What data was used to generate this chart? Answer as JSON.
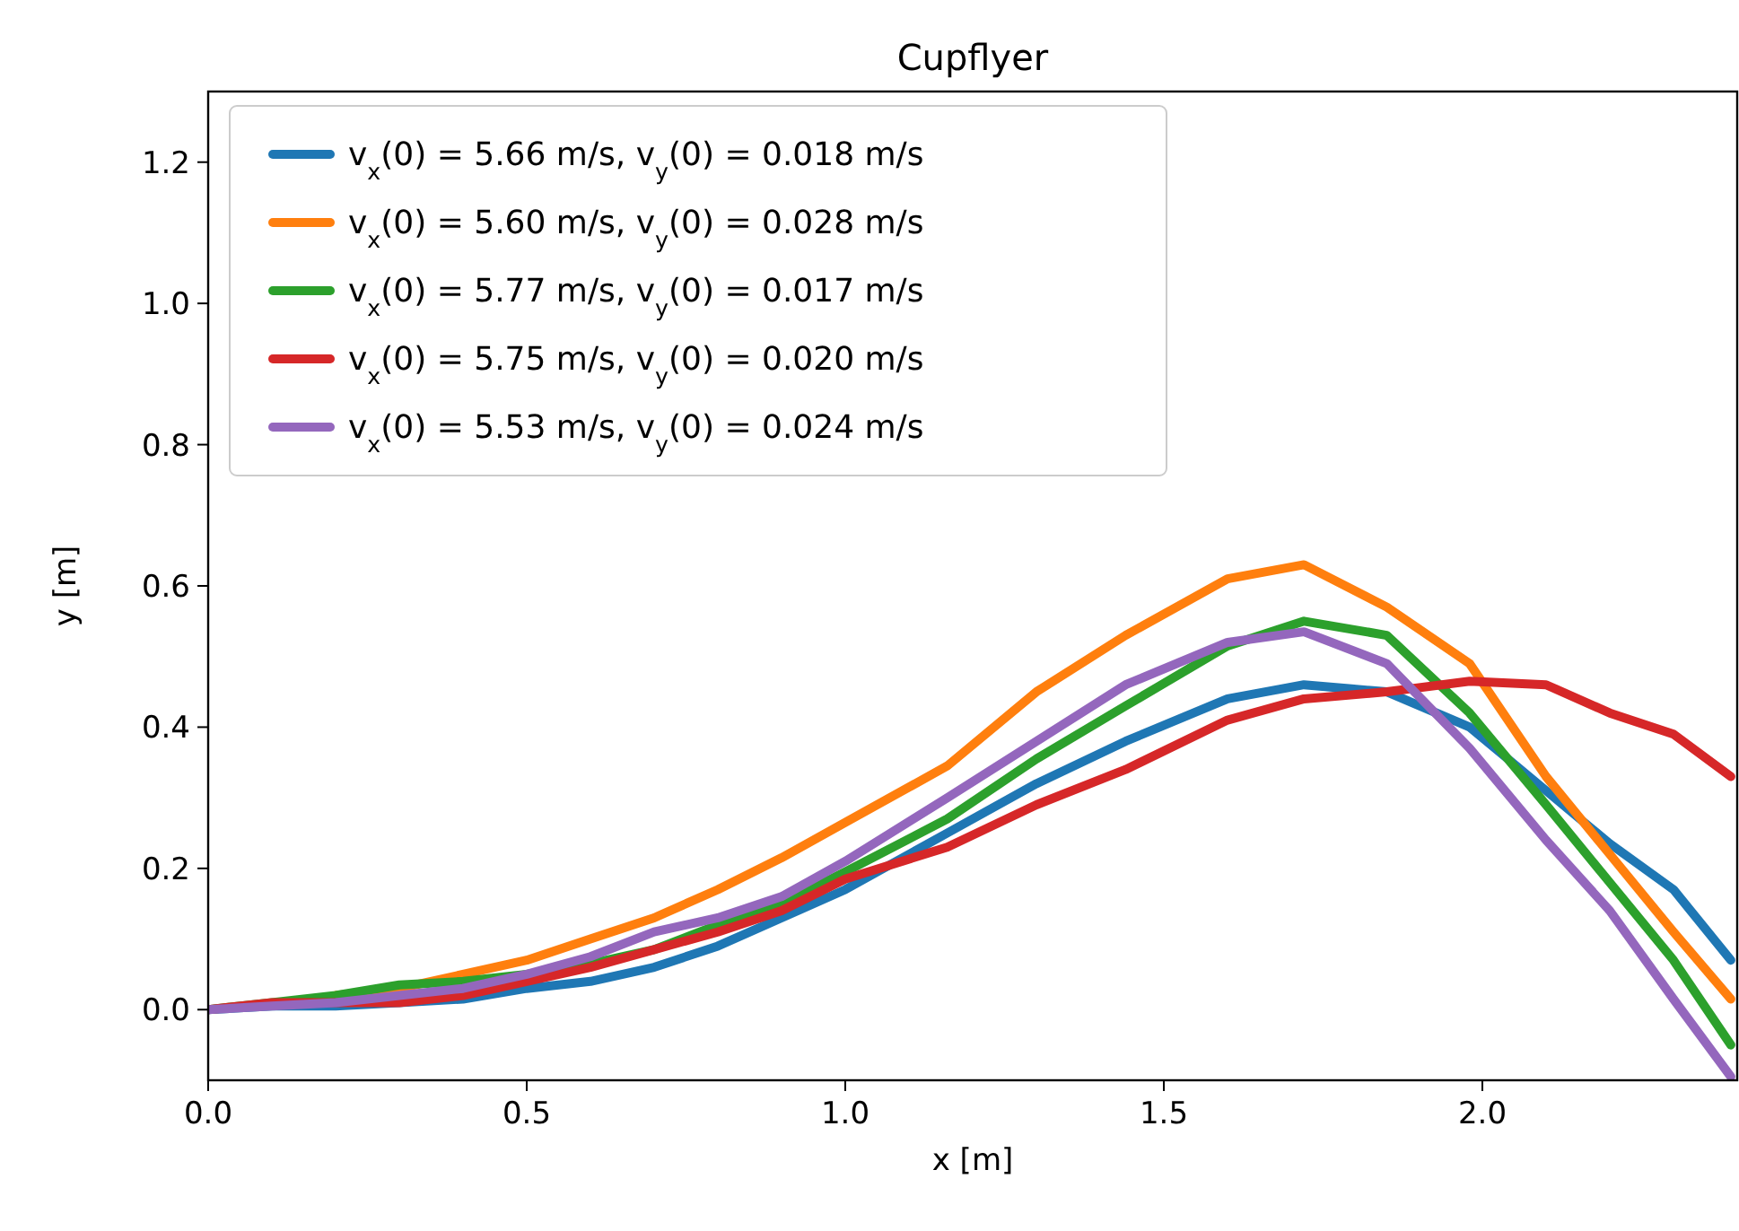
{
  "chart_data": {
    "type": "line",
    "title": "Cupflyer",
    "xlabel": "x [m]",
    "ylabel": "y [m]",
    "x": [
      0,
      0.1,
      0.2,
      0.3,
      0.4,
      0.5,
      0.6,
      0.7,
      0.8,
      0.9,
      1.0,
      1.16,
      1.3,
      1.44,
      1.6,
      1.72,
      1.85,
      1.98,
      2.1,
      2.2,
      2.3,
      2.39
    ],
    "series": [
      {
        "name": "v$_{x}$(0) = 5.66 m/s, v$_{y}$(0) = 0.018 m/s",
        "color": "#1f77b4",
        "values": [
          0,
          0.005,
          0.005,
          0.01,
          0.015,
          0.03,
          0.04,
          0.06,
          0.09,
          0.13,
          0.17,
          0.25,
          0.32,
          0.38,
          0.44,
          0.46,
          0.45,
          0.4,
          0.31,
          0.235,
          0.17,
          0.07
        ]
      },
      {
        "name": "v$_{x}$(0) = 5.60 m/s, v$_{y}$(0) = 0.028 m/s",
        "color": "#ff7f0e",
        "values": [
          null,
          null,
          0.02,
          0.03,
          0.05,
          0.07,
          0.1,
          0.13,
          0.17,
          0.215,
          0.265,
          0.345,
          0.45,
          0.53,
          0.61,
          0.63,
          0.57,
          0.49,
          0.33,
          0.22,
          0.11,
          0.015
        ]
      },
      {
        "name": "v$_{x}$(0) = 5.77 m/s, v$_{y}$(0) = 0.017 m/s",
        "color": "#2ca02c",
        "values": [
          0,
          0.01,
          0.02,
          0.035,
          0.04,
          0.05,
          0.065,
          0.085,
          0.12,
          0.15,
          0.195,
          0.27,
          0.355,
          0.43,
          0.515,
          0.55,
          0.53,
          0.42,
          0.29,
          0.18,
          0.07,
          -0.05
        ]
      },
      {
        "name": "v$_{x}$(0) = 5.75 m/s, v$_{y}$(0) = 0.020 m/s",
        "color": "#d62728",
        "values": [
          0,
          0.01,
          0.01,
          0.01,
          0.02,
          0.04,
          0.06,
          0.085,
          0.11,
          0.14,
          0.185,
          0.23,
          0.29,
          0.34,
          0.41,
          0.44,
          0.45,
          0.465,
          0.46,
          0.42,
          0.39,
          0.33
        ]
      },
      {
        "name": "v$_{x}$(0) = 5.53 m/s, v$_{y}$(0) = 0.024 m/s",
        "color": "#9467bd",
        "values": [
          0,
          0.005,
          0.01,
          0.02,
          0.03,
          0.05,
          0.075,
          0.11,
          0.13,
          0.16,
          0.21,
          0.3,
          0.38,
          0.46,
          0.52,
          0.535,
          0.49,
          0.37,
          0.24,
          0.14,
          0.015,
          -0.095
        ]
      }
    ],
    "xlim": [
      0,
      2.4
    ],
    "xticks": [
      {
        "value": 0,
        "label": "0.0"
      },
      0.5,
      {
        "value": 1,
        "label": "1.0"
      },
      1.5,
      {
        "value": 2,
        "label": "2.0"
      }
    ],
    "ylim": [
      -0.1,
      1.3
    ],
    "yticks": [
      {
        "value": 0,
        "label": "0.0"
      },
      0.2,
      0.4,
      0.6,
      0.8,
      {
        "value": 1,
        "label": "1.0"
      },
      1.2
    ],
    "legend": "top left",
    "marker": "none",
    "line_style": "solid",
    "grid": false
  }
}
